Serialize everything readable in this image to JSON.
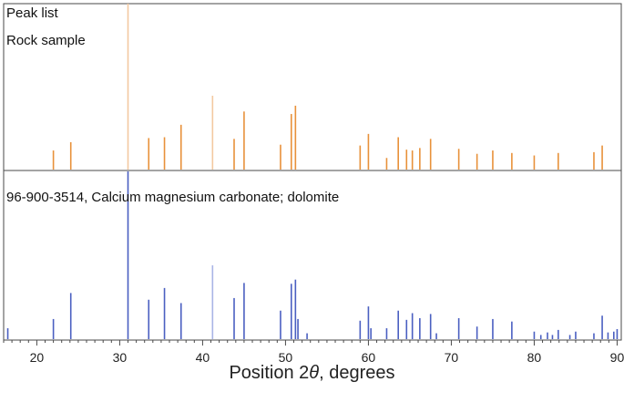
{
  "colors": {
    "top_series": "#e8913a",
    "top_series_faint": "#f3c9a0",
    "bottom_series": "#4a5fc1",
    "bottom_series_faint": "#a9b4e6"
  },
  "chart_data": [
    {
      "type": "bar",
      "panel": "top",
      "labels": [
        "Peak list",
        "Rock sample"
      ],
      "xlim": [
        16,
        90.5
      ],
      "ylim": [
        0,
        100
      ],
      "x": [
        22.0,
        24.1,
        31.0,
        33.5,
        35.4,
        37.4,
        41.2,
        43.8,
        45.0,
        49.4,
        50.7,
        51.2,
        59.0,
        60.0,
        62.2,
        63.6,
        64.6,
        65.3,
        66.2,
        67.5,
        70.9,
        73.1,
        75.0,
        77.3,
        80.0,
        82.9,
        87.2,
        88.2
      ],
      "values": [
        11.5,
        16.5,
        100,
        19,
        19.5,
        27,
        44.5,
        18.5,
        35,
        15,
        33.5,
        38.5,
        14.5,
        21.5,
        7,
        19.5,
        12,
        11.5,
        13,
        18.5,
        12.5,
        9.5,
        11.5,
        10,
        8.5,
        10,
        10.5,
        14.5
      ]
    },
    {
      "type": "bar",
      "panel": "bottom",
      "series": [
        {
          "name": "96-900-3514, Calcium magnesium carbonate; dolomite"
        }
      ],
      "xlim": [
        16,
        90.5
      ],
      "ylim": [
        0,
        100
      ],
      "x": [
        16.5,
        22.0,
        24.1,
        31.0,
        33.5,
        35.4,
        37.4,
        41.2,
        43.8,
        45.0,
        49.4,
        50.7,
        51.2,
        51.5,
        52.6,
        59.0,
        60.0,
        60.3,
        62.2,
        63.6,
        64.6,
        65.3,
        66.2,
        67.5,
        68.2,
        70.9,
        73.1,
        75.0,
        77.3,
        80.0,
        80.8,
        81.6,
        82.2,
        82.9,
        84.3,
        85.0,
        87.2,
        88.2,
        88.9,
        89.6,
        90.0
      ],
      "values": [
        6.5,
        12,
        27.5,
        100,
        23.5,
        30.5,
        21.5,
        44,
        24.5,
        33.5,
        17,
        33,
        35.5,
        12,
        3.5,
        11,
        19.5,
        6.5,
        6.5,
        17,
        11.5,
        15.5,
        12.5,
        15,
        3.5,
        12.5,
        7.5,
        12,
        10.5,
        4.5,
        2.5,
        4,
        2.5,
        5.5,
        2.5,
        4.5,
        3.5,
        14,
        4,
        4.5,
        6
      ]
    }
  ],
  "axis": {
    "xticks": [
      20,
      30,
      40,
      50,
      60,
      70,
      80,
      90
    ],
    "tick_labels": [
      "20",
      "30",
      "40",
      "50",
      "60",
      "70",
      "80",
      "90"
    ],
    "xlabel_prefix": "Position 2",
    "xlabel_symbol": "θ",
    "xlabel_suffix": ", degrees"
  }
}
